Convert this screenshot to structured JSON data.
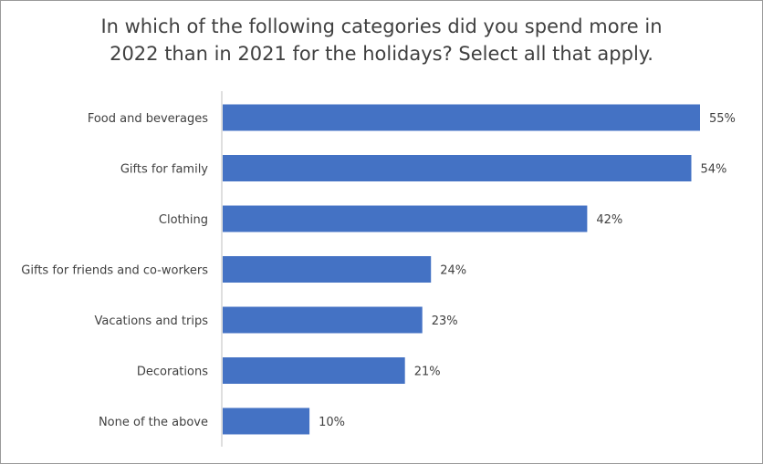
{
  "chart_data": {
    "type": "bar",
    "orientation": "horizontal",
    "title_lines": [
      "In which of the following categories did you spend more in",
      "2022 than in 2021 for the holidays? Select all that apply."
    ],
    "categories": [
      "Food and beverages",
      "Gifts for family",
      "Clothing",
      "Gifts for friends and co-workers",
      "Vacations and trips",
      "Decorations",
      "None of the above"
    ],
    "values": [
      55,
      54,
      42,
      24,
      23,
      21,
      10
    ],
    "value_labels": [
      "55%",
      "54%",
      "42%",
      "24%",
      "23%",
      "21%",
      "10%"
    ],
    "unit": "%",
    "xlim": [
      0,
      55
    ],
    "grid": false,
    "legend": "none",
    "bar_color": "#4472C4",
    "axis_color": "#BFBFBF",
    "text_color": "#404040"
  }
}
